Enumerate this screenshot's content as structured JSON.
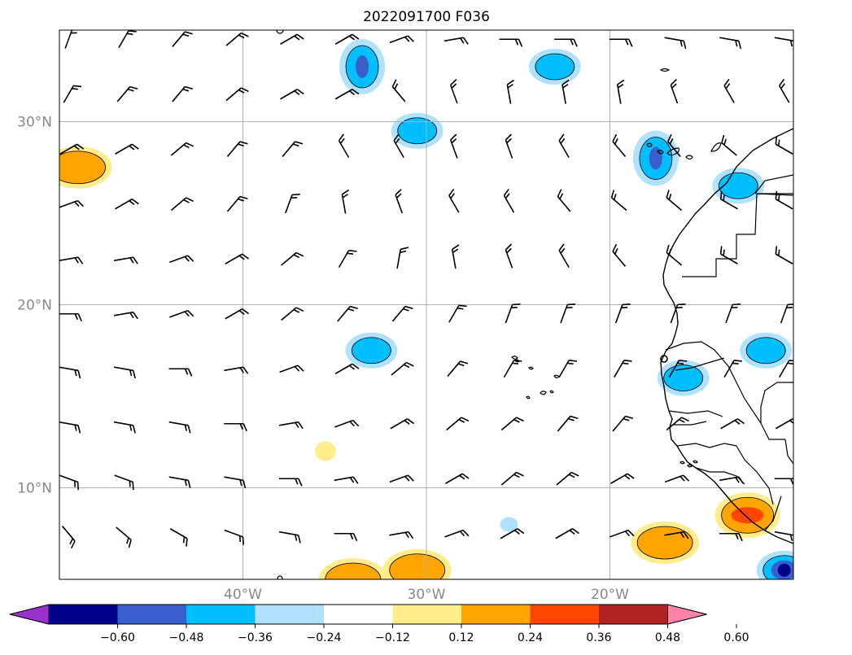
{
  "title": "2022091700 F036",
  "map": {
    "lon_range": [
      -50,
      -10
    ],
    "lat_range": [
      5,
      35
    ],
    "lat_labels": [
      {
        "value": 30,
        "text": "30°N"
      },
      {
        "value": 20,
        "text": "20°N"
      },
      {
        "value": 10,
        "text": "10°N"
      }
    ],
    "lon_labels": [
      {
        "value": -40,
        "text": "40°W"
      },
      {
        "value": -30,
        "text": "30°W"
      },
      {
        "value": -20,
        "text": "20°W"
      }
    ],
    "gridlines": true
  },
  "colorbar": {
    "ticks": [
      "−0.60",
      "−0.48",
      "−0.36",
      "−0.24",
      "−0.12",
      "0.12",
      "0.24",
      "0.36",
      "0.48",
      "0.60"
    ],
    "colors": [
      "#9932cc",
      "#00008b",
      "#3a5fcd",
      "#00bfff",
      "#b0e2ff",
      "#ffffff",
      "#ffec8b",
      "#ffa500",
      "#ff4500",
      "#b22222",
      "#ff82ab"
    ]
  },
  "shaded_regions": [
    {
      "lon": -33.5,
      "lat": 33.0,
      "level": "-0.36"
    },
    {
      "lon": -23.0,
      "lat": 33.0,
      "level": "-0.24"
    },
    {
      "lon": -30.5,
      "lat": 29.5,
      "level": "-0.24"
    },
    {
      "lon": -17.5,
      "lat": 28.0,
      "level": "-0.36"
    },
    {
      "lon": -13.0,
      "lat": 26.5,
      "level": "-0.24"
    },
    {
      "lon": -49.0,
      "lat": 27.5,
      "level": "0.24"
    },
    {
      "lon": -33.0,
      "lat": 17.5,
      "level": "-0.24"
    },
    {
      "lon": -16.0,
      "lat": 16.0,
      "level": "-0.24"
    },
    {
      "lon": -11.5,
      "lat": 17.5,
      "level": "-0.24"
    },
    {
      "lon": -35.5,
      "lat": 12.0,
      "level": "0.12"
    },
    {
      "lon": -25.5,
      "lat": 8.0,
      "level": "-0.12"
    },
    {
      "lon": -17.0,
      "lat": 7.0,
      "level": "0.24"
    },
    {
      "lon": -12.5,
      "lat": 8.5,
      "level": "0.36"
    },
    {
      "lon": -30.5,
      "lat": 5.5,
      "level": "0.24"
    },
    {
      "lon": -34.0,
      "lat": 5.0,
      "level": "0.24"
    },
    {
      "lon": -10.5,
      "lat": 5.5,
      "level": "-0.48"
    }
  ],
  "wind_barbs": {
    "rows": [
      {
        "lat": 34.5,
        "dirs": [
          20,
          30,
          40,
          50,
          60,
          60,
          70,
          80,
          90,
          90,
          90,
          100,
          100,
          100
        ]
      },
      {
        "lat": 31.5,
        "dirs": [
          30,
          40,
          40,
          50,
          60,
          60,
          320,
          340,
          350,
          350,
          350,
          340,
          330,
          330
        ]
      },
      {
        "lat": 28.5,
        "dirs": [
          60,
          60,
          50,
          40,
          40,
          330,
          330,
          340,
          340,
          330,
          320,
          320,
          310,
          300
        ]
      },
      {
        "lat": 25.5,
        "dirs": [
          70,
          60,
          50,
          40,
          20,
          350,
          340,
          330,
          330,
          320,
          310,
          310,
          300,
          300
        ]
      },
      {
        "lat": 22.5,
        "dirs": [
          80,
          80,
          70,
          60,
          50,
          30,
          10,
          350,
          340,
          330,
          320,
          310,
          300,
          300
        ]
      },
      {
        "lat": 19.5,
        "dirs": [
          90,
          80,
          70,
          60,
          50,
          40,
          40,
          30,
          20,
          20,
          20,
          20,
          20,
          20
        ]
      },
      {
        "lat": 16.5,
        "dirs": [
          100,
          100,
          90,
          80,
          70,
          60,
          50,
          40,
          30,
          30,
          30,
          30,
          30,
          30
        ]
      },
      {
        "lat": 13.5,
        "dirs": [
          100,
          100,
          100,
          90,
          80,
          70,
          60,
          50,
          50,
          40,
          40,
          50,
          60,
          60
        ]
      },
      {
        "lat": 10.5,
        "dirs": [
          110,
          110,
          100,
          100,
          90,
          80,
          70,
          60,
          50,
          50,
          60,
          70,
          80,
          90
        ]
      },
      {
        "lat": 7.5,
        "dirs": [
          140,
          130,
          120,
          110,
          100,
          90,
          80,
          70,
          60,
          60,
          70,
          80,
          90,
          100
        ]
      }
    ],
    "lons": [
      -49.5,
      -46.5,
      -43.5,
      -40.5,
      -37.5,
      -34.5,
      -31.5,
      -28.5,
      -25.5,
      -22.5,
      -19.5,
      -16.5,
      -13.5,
      -10.5
    ]
  }
}
